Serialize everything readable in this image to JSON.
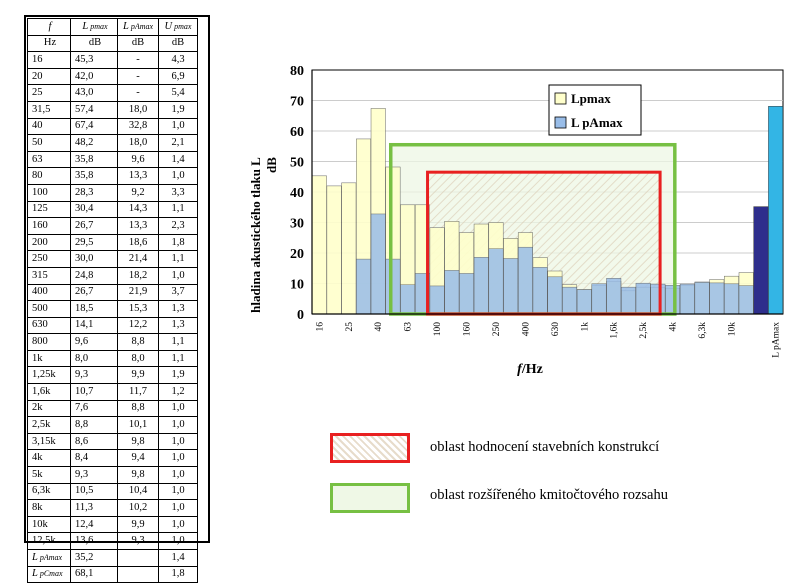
{
  "table": {
    "headers": [
      [
        "f",
        "L pmax",
        "L pAmax",
        "U pmax"
      ],
      [
        "Hz",
        "dB",
        "dB",
        "dB"
      ]
    ],
    "rows": [
      [
        "16",
        "45,3",
        "-",
        "4,3"
      ],
      [
        "20",
        "42,0",
        "-",
        "6,9"
      ],
      [
        "25",
        "43,0",
        "-",
        "5,4"
      ],
      [
        "31,5",
        "57,4",
        "18,0",
        "1,9"
      ],
      [
        "40",
        "67,4",
        "32,8",
        "1,0"
      ],
      [
        "50",
        "48,2",
        "18,0",
        "2,1"
      ],
      [
        "63",
        "35,8",
        "9,6",
        "1,4"
      ],
      [
        "80",
        "35,8",
        "13,3",
        "1,0"
      ],
      [
        "100",
        "28,3",
        "9,2",
        "3,3"
      ],
      [
        "125",
        "30,4",
        "14,3",
        "1,1"
      ],
      [
        "160",
        "26,7",
        "13,3",
        "2,3"
      ],
      [
        "200",
        "29,5",
        "18,6",
        "1,8"
      ],
      [
        "250",
        "30,0",
        "21,4",
        "1,1"
      ],
      [
        "315",
        "24,8",
        "18,2",
        "1,0"
      ],
      [
        "400",
        "26,7",
        "21,9",
        "3,7"
      ],
      [
        "500",
        "18,5",
        "15,3",
        "1,3"
      ],
      [
        "630",
        "14,1",
        "12,2",
        "1,3"
      ],
      [
        "800",
        "9,6",
        "8,8",
        "1,1"
      ],
      [
        "1k",
        "8,0",
        "8,0",
        "1,1"
      ],
      [
        "1,25k",
        "9,3",
        "9,9",
        "1,9"
      ],
      [
        "1,6k",
        "10,7",
        "11,7",
        "1,2"
      ],
      [
        "2k",
        "7,6",
        "8,8",
        "1,0"
      ],
      [
        "2,5k",
        "8,8",
        "10,1",
        "1,0"
      ],
      [
        "3,15k",
        "8,6",
        "9,8",
        "1,0"
      ],
      [
        "4k",
        "8,4",
        "9,4",
        "1,0"
      ],
      [
        "5k",
        "9,3",
        "9,8",
        "1,0"
      ],
      [
        "6,3k",
        "10,5",
        "10,4",
        "1,0"
      ],
      [
        "8k",
        "11,3",
        "10,2",
        "1,0"
      ],
      [
        "10k",
        "12,4",
        "9,9",
        "1,0"
      ],
      [
        "12,5k",
        "13,6",
        "9,3",
        "1,0"
      ],
      [
        "L pAmax",
        "35,2",
        "",
        "1,4"
      ],
      [
        "L pCmax",
        "68,1",
        "",
        "1,8"
      ]
    ]
  },
  "chart_data": {
    "type": "bar",
    "ylabel_line1": "hladina akustického tlaku L",
    "ylabel_line2": "dB",
    "xlabel": "f/Hz",
    "ylim": [
      0,
      80
    ],
    "yticks": [
      "0",
      "10",
      "20",
      "30",
      "40",
      "50",
      "60",
      "70",
      "80"
    ],
    "categories": [
      "16",
      "20",
      "25",
      "31,5",
      "40",
      "50",
      "63",
      "80",
      "100",
      "125",
      "160",
      "200",
      "250",
      "315",
      "400",
      "500",
      "630",
      "800",
      "1k",
      "1,25k",
      "1,6k",
      "2k",
      "2,5k",
      "3,15k",
      "4k",
      "5k",
      "6,3k",
      "8k",
      "10k",
      "12,5k"
    ],
    "xtick_labels": [
      "16",
      "",
      "25",
      "",
      "40",
      "",
      "63",
      "",
      "100",
      "",
      "160",
      "",
      "250",
      "",
      "400",
      "",
      "630",
      "",
      "1k",
      "",
      "1,6k",
      "",
      "2,5k",
      "",
      "4k",
      "",
      "6,3k",
      "",
      "10k",
      ""
    ],
    "series": [
      {
        "name": "Lpmax",
        "color": "#ffffcc",
        "values": [
          45.3,
          42.0,
          43.0,
          57.4,
          67.4,
          48.2,
          35.8,
          35.8,
          28.3,
          30.4,
          26.7,
          29.5,
          30.0,
          24.8,
          26.7,
          18.5,
          14.1,
          9.6,
          8.0,
          9.3,
          10.7,
          7.6,
          8.8,
          8.6,
          8.4,
          9.3,
          10.5,
          11.3,
          12.4,
          13.6
        ]
      },
      {
        "name": "L pAmax",
        "color": "#99bde8",
        "values": [
          null,
          null,
          null,
          18.0,
          32.8,
          18.0,
          9.6,
          13.3,
          9.2,
          14.3,
          13.3,
          18.6,
          21.4,
          18.2,
          21.9,
          15.3,
          12.2,
          8.8,
          8.0,
          9.9,
          11.7,
          8.8,
          10.1,
          9.8,
          9.4,
          9.8,
          10.4,
          10.2,
          9.9,
          9.3
        ]
      }
    ],
    "totals": [
      {
        "label": "L pAmax",
        "value": 35.2,
        "color": "#2e2e8c"
      },
      {
        "label": "L pCmax",
        "value": 68.1,
        "color": "#33b5e5"
      }
    ],
    "total_tick_label": "L pAmax",
    "region_red_hz": [
      "100",
      "3,15k"
    ],
    "region_green_hz": [
      "50",
      "4k"
    ],
    "region_red_color": "#e82020",
    "region_green_color": "#77c043"
  },
  "legend2": {
    "red_label": "oblast hodnocení stavebních konstrukcí",
    "green_label": "oblast rozšířeného kmitočtového rozsahu"
  }
}
